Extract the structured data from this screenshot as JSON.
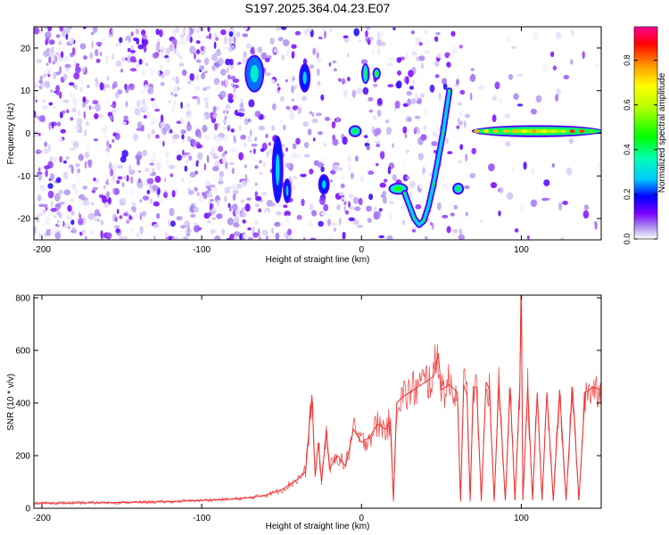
{
  "title": "S197.2025.364.04.23.E07",
  "chart_data": [
    {
      "type": "heatmap",
      "xlabel": "Height of straight line (km)",
      "ylabel": "Frequency (Hz)",
      "xlim": [
        -205,
        150
      ],
      "ylim": [
        -25,
        25
      ],
      "x_ticks": [
        -200,
        -100,
        0,
        100
      ],
      "y_ticks": [
        -20,
        -10,
        0,
        10,
        20
      ],
      "colorbar": {
        "label": "Normalized spectral amplitude",
        "range": [
          0,
          0.95
        ],
        "ticks": [
          0.0,
          0.2,
          0.4,
          0.6,
          0.8
        ]
      },
      "features": [
        {
          "x": [
            -72,
            -62
          ],
          "freq": [
            10,
            18
          ],
          "amplitude": 0.35
        },
        {
          "x": [
            -55,
            -50
          ],
          "freq": [
            -16,
            -1
          ],
          "amplitude": 0.3
        },
        {
          "x": [
            -48,
            -45
          ],
          "freq": [
            -16,
            -11
          ],
          "amplitude": 0.3
        },
        {
          "x": [
            -38,
            -33
          ],
          "freq": [
            10,
            16
          ],
          "amplitude": 0.3
        },
        {
          "x": [
            -26,
            -21
          ],
          "freq": [
            -14,
            -10
          ],
          "amplitude": 0.3
        },
        {
          "x": [
            -7,
            -1
          ],
          "freq": [
            -0.5,
            1.5
          ],
          "amplitude": 0.45
        },
        {
          "x": [
            1,
            4
          ],
          "freq": [
            12,
            16
          ],
          "amplitude": 0.45
        },
        {
          "x": [
            8,
            11
          ],
          "freq": [
            13,
            15
          ],
          "amplitude": 0.5
        },
        {
          "x": [
            18,
            28
          ],
          "freq": [
            -14,
            -12
          ],
          "amplitude": 0.5
        },
        {
          "x": [
            58,
            63
          ],
          "freq": [
            -14,
            -12
          ],
          "amplitude": 0.45
        },
        {
          "x": [
            70,
            150
          ],
          "freq": [
            -0.5,
            1.5
          ],
          "amplitude": 0.6
        }
      ],
      "curve": {
        "x": [
          27,
          30,
          33,
          36,
          39,
          42,
          45,
          48,
          51,
          53,
          55
        ],
        "freq": [
          -14,
          -17,
          -20,
          -21.5,
          -20.5,
          -17,
          -12,
          -6,
          0,
          5,
          10
        ]
      }
    },
    {
      "type": "line",
      "xlabel": "Height of straight line (km)",
      "ylabel": "SNR (10 * v/v)",
      "xlim": [
        -205,
        150
      ],
      "ylim": [
        0,
        810
      ],
      "x_ticks": [
        -200,
        -100,
        0,
        100
      ],
      "y_ticks": [
        0,
        200,
        400,
        600,
        800
      ],
      "color": "#ee3333",
      "series": [
        {
          "x": [
            -205,
            -180,
            -150,
            -120,
            -100,
            -80,
            -70,
            -60,
            -55,
            -50,
            -45,
            -40,
            -35,
            -31,
            -29,
            -27,
            -25,
            -22,
            -20,
            -15,
            -10,
            -5,
            0,
            5,
            10,
            15,
            18,
            20,
            22,
            25,
            30,
            35,
            40,
            45,
            48,
            50,
            55,
            60,
            62,
            64,
            66,
            68,
            70,
            72,
            75,
            78,
            80,
            83,
            86,
            90,
            93,
            96,
            99,
            100,
            101,
            104,
            107,
            110,
            113,
            116,
            120,
            124,
            128,
            132,
            136,
            140,
            145,
            150
          ],
          "y": [
            20,
            20,
            22,
            25,
            30,
            35,
            40,
            50,
            60,
            70,
            90,
            110,
            140,
            430,
            120,
            250,
            100,
            300,
            150,
            200,
            160,
            300,
            250,
            270,
            320,
            300,
            330,
            30,
            400,
            420,
            440,
            460,
            480,
            500,
            590,
            450,
            470,
            440,
            30,
            470,
            430,
            30,
            460,
            460,
            30,
            480,
            450,
            30,
            470,
            30,
            460,
            30,
            450,
            810,
            30,
            460,
            30,
            440,
            30,
            440,
            30,
            450,
            30,
            460,
            30,
            440,
            460,
            450
          ]
        }
      ]
    }
  ]
}
